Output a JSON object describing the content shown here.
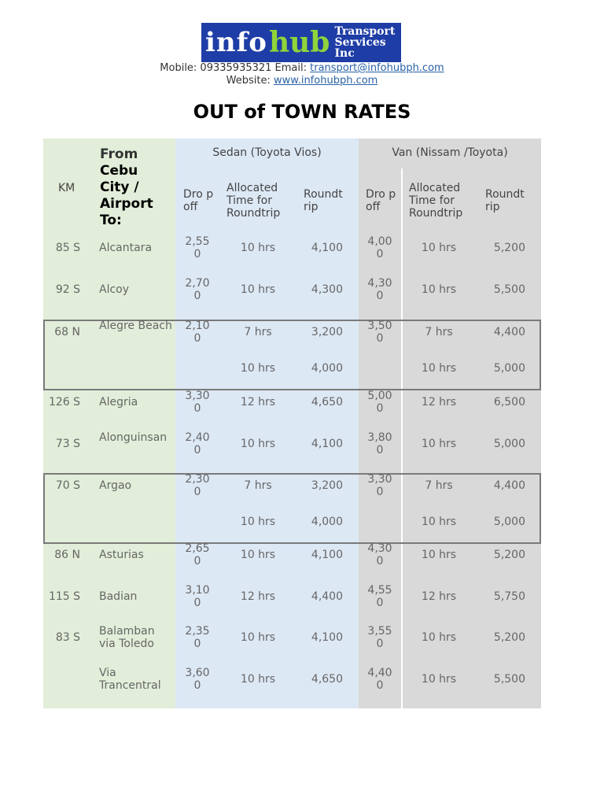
{
  "header": {
    "logo": {
      "info": "info",
      "hub": "hub",
      "line1": "Transport",
      "line2": "Services Inc"
    },
    "mobile_label": "Mobile: 09335935321 Email: ",
    "email": "transport@infohubph.com",
    "website_label": "Website: ",
    "website": "www.infohubph.com"
  },
  "title": "OUT of TOWN RATES",
  "table": {
    "colors": {
      "green": "#e2eed9",
      "blue": "#dde8f5",
      "gray": "#d9d9d9"
    },
    "km_header": "KM",
    "from_header_1": "From",
    "from_header_2": "Cebu City / Airport To:",
    "sedan_header": "Sedan (Toyota Vios)",
    "van_header": "Van (Nissam /Toyota)",
    "sub_headers": {
      "dropoff": "Dro p off",
      "allocated": "Allocated Time for Roundtrip",
      "roundtrip": "Roundt rip"
    },
    "rows": [
      {
        "km": "85 S",
        "dest": "Alcantara",
        "s_drop": "2,550",
        "s_time": "10 hrs",
        "s_rt": "4,100",
        "v_drop": "4,000",
        "v_time": "10 hrs",
        "v_rt": "5,200"
      },
      {
        "km": "92 S",
        "dest": "Alcoy",
        "s_drop": "2,700",
        "s_time": "10 hrs",
        "s_rt": "4,300",
        "v_drop": "4,300",
        "v_time": "10 hrs",
        "v_rt": "5,500"
      },
      {
        "km": "68 N",
        "dest": "Alegre Beach",
        "s_drop": "2,100",
        "s_time": "7 hrs",
        "s_rt": "3,200",
        "v_drop": "3,500",
        "v_time": "7 hrs",
        "v_rt": "4,400"
      },
      {
        "km": "",
        "dest": "",
        "s_drop": "",
        "s_time": "10 hrs",
        "s_rt": "4,000",
        "v_drop": "",
        "v_time": "10 hrs",
        "v_rt": "5,000"
      },
      {
        "km": "126 S",
        "dest": "Alegria",
        "s_drop": "3,300",
        "s_time": "12 hrs",
        "s_rt": "4,650",
        "v_drop": "5,000",
        "v_time": "12 hrs",
        "v_rt": "6,500"
      },
      {
        "km": "73 S",
        "dest": "Alonguinsan",
        "s_drop": "2,400",
        "s_time": "10 hrs",
        "s_rt": "4,100",
        "v_drop": "3,800",
        "v_time": "10 hrs",
        "v_rt": "5,000"
      },
      {
        "km": "70 S",
        "dest": "Argao",
        "s_drop": "2,300",
        "s_time": "7 hrs",
        "s_rt": "3,200",
        "v_drop": "3,300",
        "v_time": "7 hrs",
        "v_rt": "4,400"
      },
      {
        "km": "",
        "dest": "",
        "s_drop": "",
        "s_time": "10 hrs",
        "s_rt": "4,000",
        "v_drop": "",
        "v_time": "10 hrs",
        "v_rt": "5,000"
      },
      {
        "km": "86 N",
        "dest": "Asturias",
        "s_drop": "2,650",
        "s_time": "10 hrs",
        "s_rt": "4,100",
        "v_drop": "4,300",
        "v_time": "10 hrs",
        "v_rt": "5,200"
      },
      {
        "km": "115 S",
        "dest": "Badian",
        "s_drop": "3,100",
        "s_time": "12 hrs",
        "s_rt": "4,400",
        "v_drop": "4,550",
        "v_time": "12 hrs",
        "v_rt": "5,750"
      },
      {
        "km": "83 S",
        "dest": "Balamban via Toledo",
        "s_drop": "2,350",
        "s_time": "10 hrs",
        "s_rt": "4,100",
        "v_drop": "3,550",
        "v_time": "10 hrs",
        "v_rt": "5,200"
      },
      {
        "km": "",
        "dest": "Via Trancentral",
        "s_drop": "3,600",
        "s_time": "10 hrs",
        "s_rt": "4,650",
        "v_drop": "4,400",
        "v_time": "10 hrs",
        "v_rt": "5,500"
      }
    ]
  }
}
